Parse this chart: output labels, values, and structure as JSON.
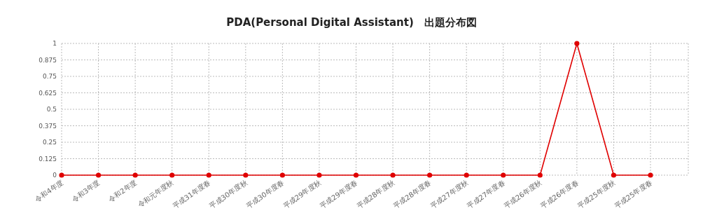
{
  "chart_data": {
    "type": "line",
    "title": "PDA(Personal Digital Assistant)　出題分布図",
    "categories": [
      "令和4年度",
      "令和3年度",
      "令和2年度",
      "令和元年度秋",
      "平成31年度春",
      "平成30年度秋",
      "平成30年度春",
      "平成29年度秋",
      "平成29年度春",
      "平成28年度秋",
      "平成28年度春",
      "平成27年度秋",
      "平成27年度春",
      "平成26年度秋",
      "平成26年度春",
      "平成25年度秋",
      "平成25年度春"
    ],
    "series": [
      {
        "color": "#e00000",
        "values": [
          0,
          0,
          0,
          0,
          0,
          0,
          0,
          0,
          0,
          0,
          0,
          0,
          0,
          0,
          1,
          0,
          0
        ]
      }
    ],
    "ylim": [
      0,
      1
    ],
    "yticks": [
      0,
      0.125,
      0.25,
      0.375,
      0.5,
      0.625,
      0.75,
      0.875,
      1
    ],
    "grid": true,
    "marker": "circle",
    "line_style": "solid"
  }
}
